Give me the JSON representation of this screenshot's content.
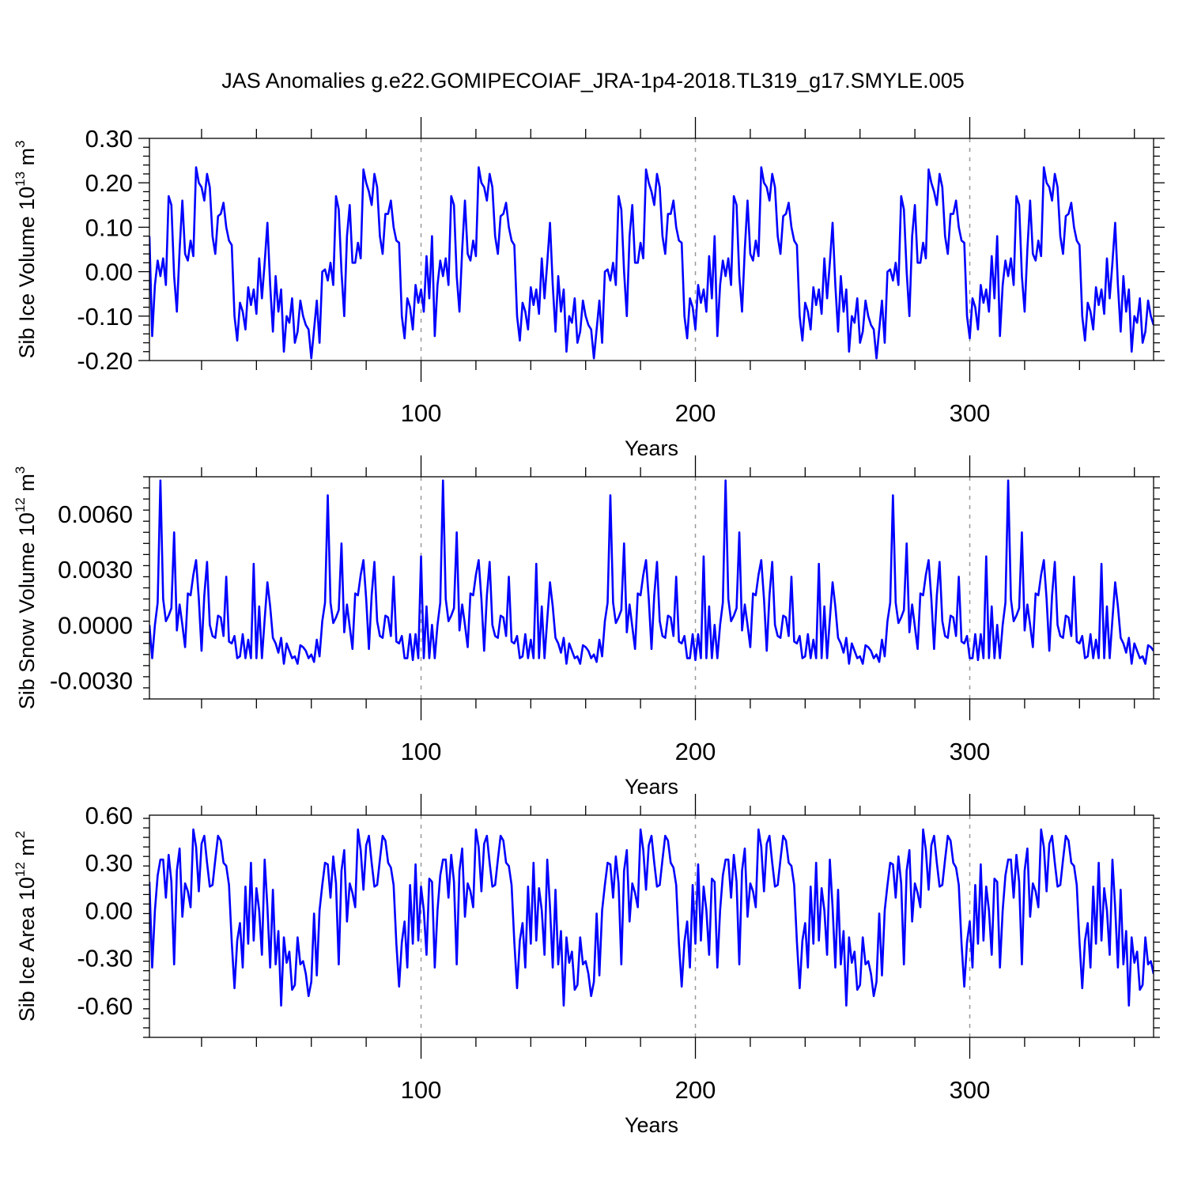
{
  "title": "JAS Anomalies g.e22.GOMIPECOIAF_JRA-1p4-2018.TL319_g17.SMYLE.005",
  "colors": {
    "series": "#0000ff",
    "grid": "#999999",
    "axis": "#000000"
  },
  "chart_data": [
    {
      "type": "line",
      "ylabel_main": "Sib Ice Volume 10",
      "ylabel_sup": "13",
      "ylabel_unit": " m",
      "ylabel_unit_sup": "3",
      "xlabel": "Years",
      "xlim": [
        1,
        367
      ],
      "ylim": [
        -0.2,
        0.3
      ],
      "yticks": [
        -0.2,
        -0.1,
        0.0,
        0.1,
        0.2,
        0.3
      ],
      "ytick_labels": [
        "-0.20",
        "-0.10",
        "0.00",
        "0.10",
        "0.20",
        "0.30"
      ],
      "yminor_step": 0.02,
      "xticks": [
        100,
        200,
        300
      ],
      "xtick_labels": [
        "100",
        "200",
        "300"
      ],
      "xminor_step": 20,
      "grid_x": [
        100,
        200,
        300
      ],
      "block_values": [
        0.08,
        -0.145,
        -0.03,
        0.025,
        -0.01,
        0.03,
        -0.03,
        0.17,
        0.15,
        -0.01,
        -0.09,
        0.05,
        0.16,
        0.04,
        0.025,
        0.07,
        0.035,
        0.235,
        0.2,
        0.19,
        0.16,
        0.22,
        0.19,
        0.08,
        0.04,
        0.125,
        0.13,
        0.155,
        0.1,
        0.07,
        0.06,
        -0.1,
        -0.155,
        -0.07,
        -0.09,
        -0.13,
        -0.035,
        -0.075,
        -0.04,
        -0.095,
        0.03,
        -0.06,
        0.02,
        0.11,
        -0.03,
        -0.135,
        -0.01,
        -0.09,
        -0.04,
        -0.18,
        -0.1,
        -0.115,
        -0.06,
        -0.16,
        -0.135,
        -0.065,
        -0.1,
        -0.12,
        -0.13,
        -0.195,
        -0.13,
        -0.065,
        -0.16,
        0.0,
        0.005,
        -0.02,
        0.02,
        -0.03,
        0.17,
        0.14,
        0.0,
        -0.1,
        0.08,
        0.15,
        0.02,
        0.02,
        0.065,
        0.03,
        0.23,
        0.2,
        0.18,
        0.15,
        0.22,
        0.19,
        0.08,
        0.04,
        0.13,
        0.13,
        0.16,
        0.1,
        0.07,
        0.065,
        -0.1,
        -0.15,
        -0.06,
        -0.08,
        -0.13,
        -0.03,
        -0.07,
        -0.04,
        -0.09,
        0.035,
        -0.06
      ],
      "block_length": 103
    },
    {
      "type": "line",
      "ylabel_main": "Sib Snow Volume 10",
      "ylabel_sup": "12",
      "ylabel_unit": " m",
      "ylabel_unit_sup": "3",
      "xlabel": "Years",
      "xlim": [
        1,
        367
      ],
      "ylim": [
        -0.004,
        0.008
      ],
      "yticks": [
        -0.003,
        0.0,
        0.003,
        0.006
      ],
      "ytick_labels": [
        "-0.0030",
        "0.0000",
        "0.0030",
        "0.0060"
      ],
      "yminor_step": 0.0006,
      "xticks": [
        100,
        200,
        300
      ],
      "xtick_labels": [
        "100",
        "200",
        "300"
      ],
      "xminor_step": 20,
      "grid_x": [
        100,
        200,
        300
      ],
      "block_values": [
        0.0,
        -0.0018,
        0.0,
        0.0012,
        0.0078,
        0.0014,
        0.0002,
        0.0005,
        0.0009,
        0.005,
        -0.0003,
        0.0011,
        0.0,
        -0.0012,
        0.0017,
        0.0016,
        0.0027,
        0.0035,
        0.0014,
        -0.0014,
        0.0016,
        0.0034,
        0.0,
        -0.0006,
        -0.0007,
        0.0005,
        0.0004,
        -0.0006,
        0.0026,
        -0.0009,
        -0.001,
        -0.0006,
        -0.0018,
        -0.0017,
        -0.0005,
        -0.0018,
        -0.0008,
        -0.0018,
        0.0033,
        -0.0018,
        0.001,
        -0.0018,
        0.0003,
        0.0023,
        0.001,
        -0.0007,
        -0.001,
        -0.0015,
        -0.0007,
        -0.0021,
        -0.001,
        -0.0014,
        -0.0018,
        -0.0017,
        -0.0021,
        -0.0011,
        -0.0012,
        -0.0014,
        -0.0018,
        -0.0016,
        -0.002,
        -0.0008,
        -0.0017,
        0.0002,
        0.0012,
        0.007,
        0.0012,
        0.0001,
        0.0004,
        0.0008,
        0.0044,
        -0.0004,
        0.0011,
        -0.0001,
        -0.0013,
        0.0017,
        0.0016,
        0.0027,
        0.0035,
        0.0014,
        -0.0013,
        0.0016,
        0.0034,
        0.0002,
        -0.0006,
        -0.0007,
        0.0005,
        0.0004,
        -0.0006,
        0.0026,
        -0.0009,
        -0.001,
        -0.0006,
        -0.0018,
        -0.0018,
        -0.0005,
        -0.0019,
        -0.0005,
        -0.0018,
        0.0037,
        -0.0018,
        0.001,
        -0.0018
      ],
      "block_length": 103
    },
    {
      "type": "line",
      "ylabel_main": "Sib Ice Area 10",
      "ylabel_sup": "12",
      "ylabel_unit": " m",
      "ylabel_unit_sup": "2",
      "xlabel": "Years",
      "xlim": [
        1,
        367
      ],
      "ylim": [
        -0.8,
        0.6
      ],
      "yticks": [
        -0.6,
        -0.3,
        0.0,
        0.3,
        0.6
      ],
      "ytick_labels": [
        "-0.60",
        "-0.30",
        "0.00",
        "0.30",
        "0.60"
      ],
      "yminor_step": 0.06,
      "xticks": [
        100,
        200,
        300
      ],
      "xtick_labels": [
        "100",
        "200",
        "300"
      ],
      "xminor_step": 20,
      "grid_x": [
        100,
        200,
        300
      ],
      "block_values": [
        0.18,
        -0.36,
        0.0,
        0.22,
        0.32,
        0.32,
        0.08,
        0.35,
        0.18,
        -0.34,
        0.25,
        0.39,
        -0.04,
        0.17,
        0.12,
        0.02,
        0.51,
        0.4,
        0.12,
        0.42,
        0.47,
        0.3,
        0.15,
        0.16,
        0.32,
        0.47,
        0.44,
        0.3,
        0.28,
        0.16,
        -0.2,
        -0.49,
        -0.19,
        -0.08,
        -0.36,
        0.15,
        -0.21,
        0.3,
        -0.19,
        0.14,
        0.0,
        -0.28,
        0.32,
        0.02,
        -0.36,
        0.13,
        -0.34,
        -0.13,
        -0.6,
        -0.17,
        -0.33,
        -0.26,
        -0.5,
        -0.47,
        -0.17,
        -0.34,
        -0.32,
        -0.4,
        -0.54,
        -0.45,
        -0.02,
        -0.41,
        0.0,
        0.16,
        0.3,
        0.29,
        0.08,
        0.34,
        0.17,
        -0.34,
        0.25,
        0.38,
        -0.07,
        0.17,
        0.11,
        0.02,
        0.51,
        0.38,
        0.13,
        0.41,
        0.47,
        0.3,
        0.15,
        0.16,
        0.32,
        0.47,
        0.44,
        0.3,
        0.27,
        0.16,
        -0.21,
        -0.48,
        -0.2,
        -0.07,
        -0.36,
        0.16,
        -0.21,
        0.29,
        -0.19,
        0.15,
        0.0,
        -0.28,
        0.2
      ],
      "block_length": 103
    }
  ]
}
